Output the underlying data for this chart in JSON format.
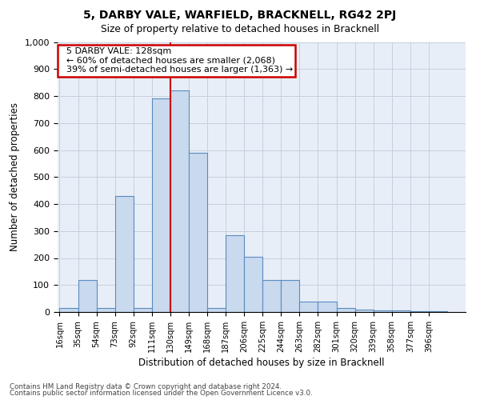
{
  "title": "5, DARBY VALE, WARFIELD, BRACKNELL, RG42 2PJ",
  "subtitle": "Size of property relative to detached houses in Bracknell",
  "xlabel": "Distribution of detached houses by size in Bracknell",
  "ylabel": "Number of detached properties",
  "bin_labels": [
    "16sqm",
    "35sqm",
    "54sqm",
    "73sqm",
    "92sqm",
    "111sqm",
    "130sqm",
    "149sqm",
    "168sqm",
    "187sqm",
    "206sqm",
    "225sqm",
    "244sqm",
    "263sqm",
    "282sqm",
    "301sqm",
    "320sqm",
    "339sqm",
    "358sqm",
    "377sqm",
    "396sqm"
  ],
  "bin_edges": [
    16,
    35,
    54,
    73,
    92,
    111,
    130,
    149,
    168,
    187,
    206,
    225,
    244,
    263,
    282,
    301,
    320,
    339,
    358,
    377,
    396,
    415
  ],
  "bar_heights": [
    15,
    120,
    15,
    430,
    15,
    790,
    820,
    590,
    15,
    285,
    205,
    120,
    120,
    40,
    40,
    15,
    10,
    5,
    5,
    2,
    3
  ],
  "bar_color": "#c9d9ee",
  "bar_edge_color": "#5a8bbf",
  "vline_x": 130,
  "vline_color": "#cc0000",
  "annotation_title": "5 DARBY VALE: 128sqm",
  "annotation_line1": "← 60% of detached houses are smaller (2,068)",
  "annotation_line2": "39% of semi-detached houses are larger (1,363) →",
  "annotation_box_color": "#cc0000",
  "ylim": [
    0,
    1000
  ],
  "yticks": [
    0,
    100,
    200,
    300,
    400,
    500,
    600,
    700,
    800,
    900,
    1000
  ],
  "grid_color": "#c8d0dc",
  "bg_color": "#e8eef7",
  "footer1": "Contains HM Land Registry data © Crown copyright and database right 2024.",
  "footer2": "Contains public sector information licensed under the Open Government Licence v3.0."
}
